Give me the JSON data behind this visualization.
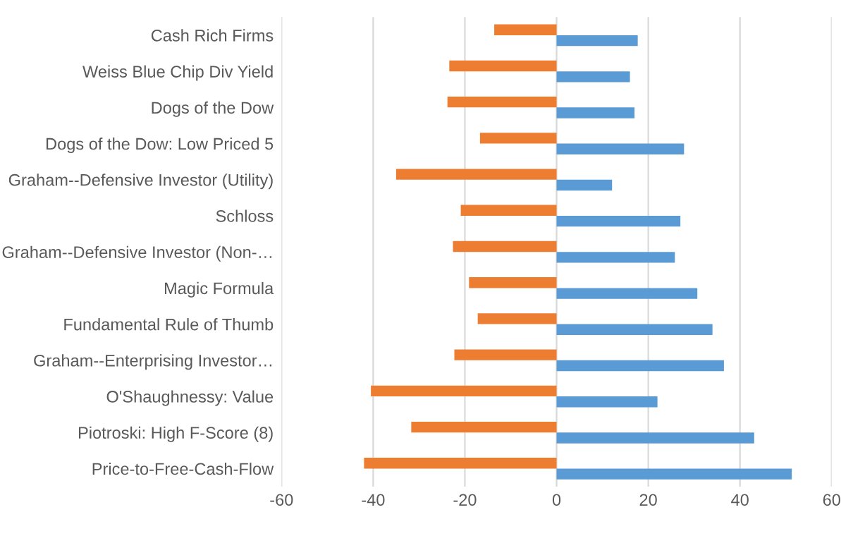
{
  "chart_data": {
    "type": "bar",
    "orientation": "horizontal",
    "categories": [
      "Cash Rich Firms",
      "Weiss Blue Chip Div Yield",
      "Dogs of the Dow",
      "Dogs of the Dow: Low Priced 5",
      "Graham--Defensive Investor (Utility)",
      "Schloss",
      "Graham--Defensive Investor (Non-…",
      "Magic Formula",
      "Fundamental Rule of Thumb",
      "Graham--Enterprising Investor…",
      "O'Shaughnessy: Value",
      "Piotroski: High F-Score (8)",
      "Price-to-Free-Cash-Flow"
    ],
    "series": [
      {
        "color": "#5b9bd5",
        "values": [
          17.7,
          16.0,
          17.0,
          27.8,
          12.1,
          27.0,
          25.8,
          30.7,
          34.0,
          36.5,
          22.0,
          43.1,
          51.3
        ]
      },
      {
        "color": "#ed7d31",
        "values": [
          -13.6,
          -23.4,
          -23.8,
          -16.7,
          -35.0,
          -20.9,
          -22.6,
          -19.1,
          -17.2,
          -22.3,
          -40.5,
          -31.7,
          -42.0
        ]
      }
    ],
    "xlim": [
      -60,
      60
    ],
    "xticks": [
      -60,
      -40,
      -20,
      0,
      20,
      40,
      60
    ],
    "grid": "x"
  }
}
